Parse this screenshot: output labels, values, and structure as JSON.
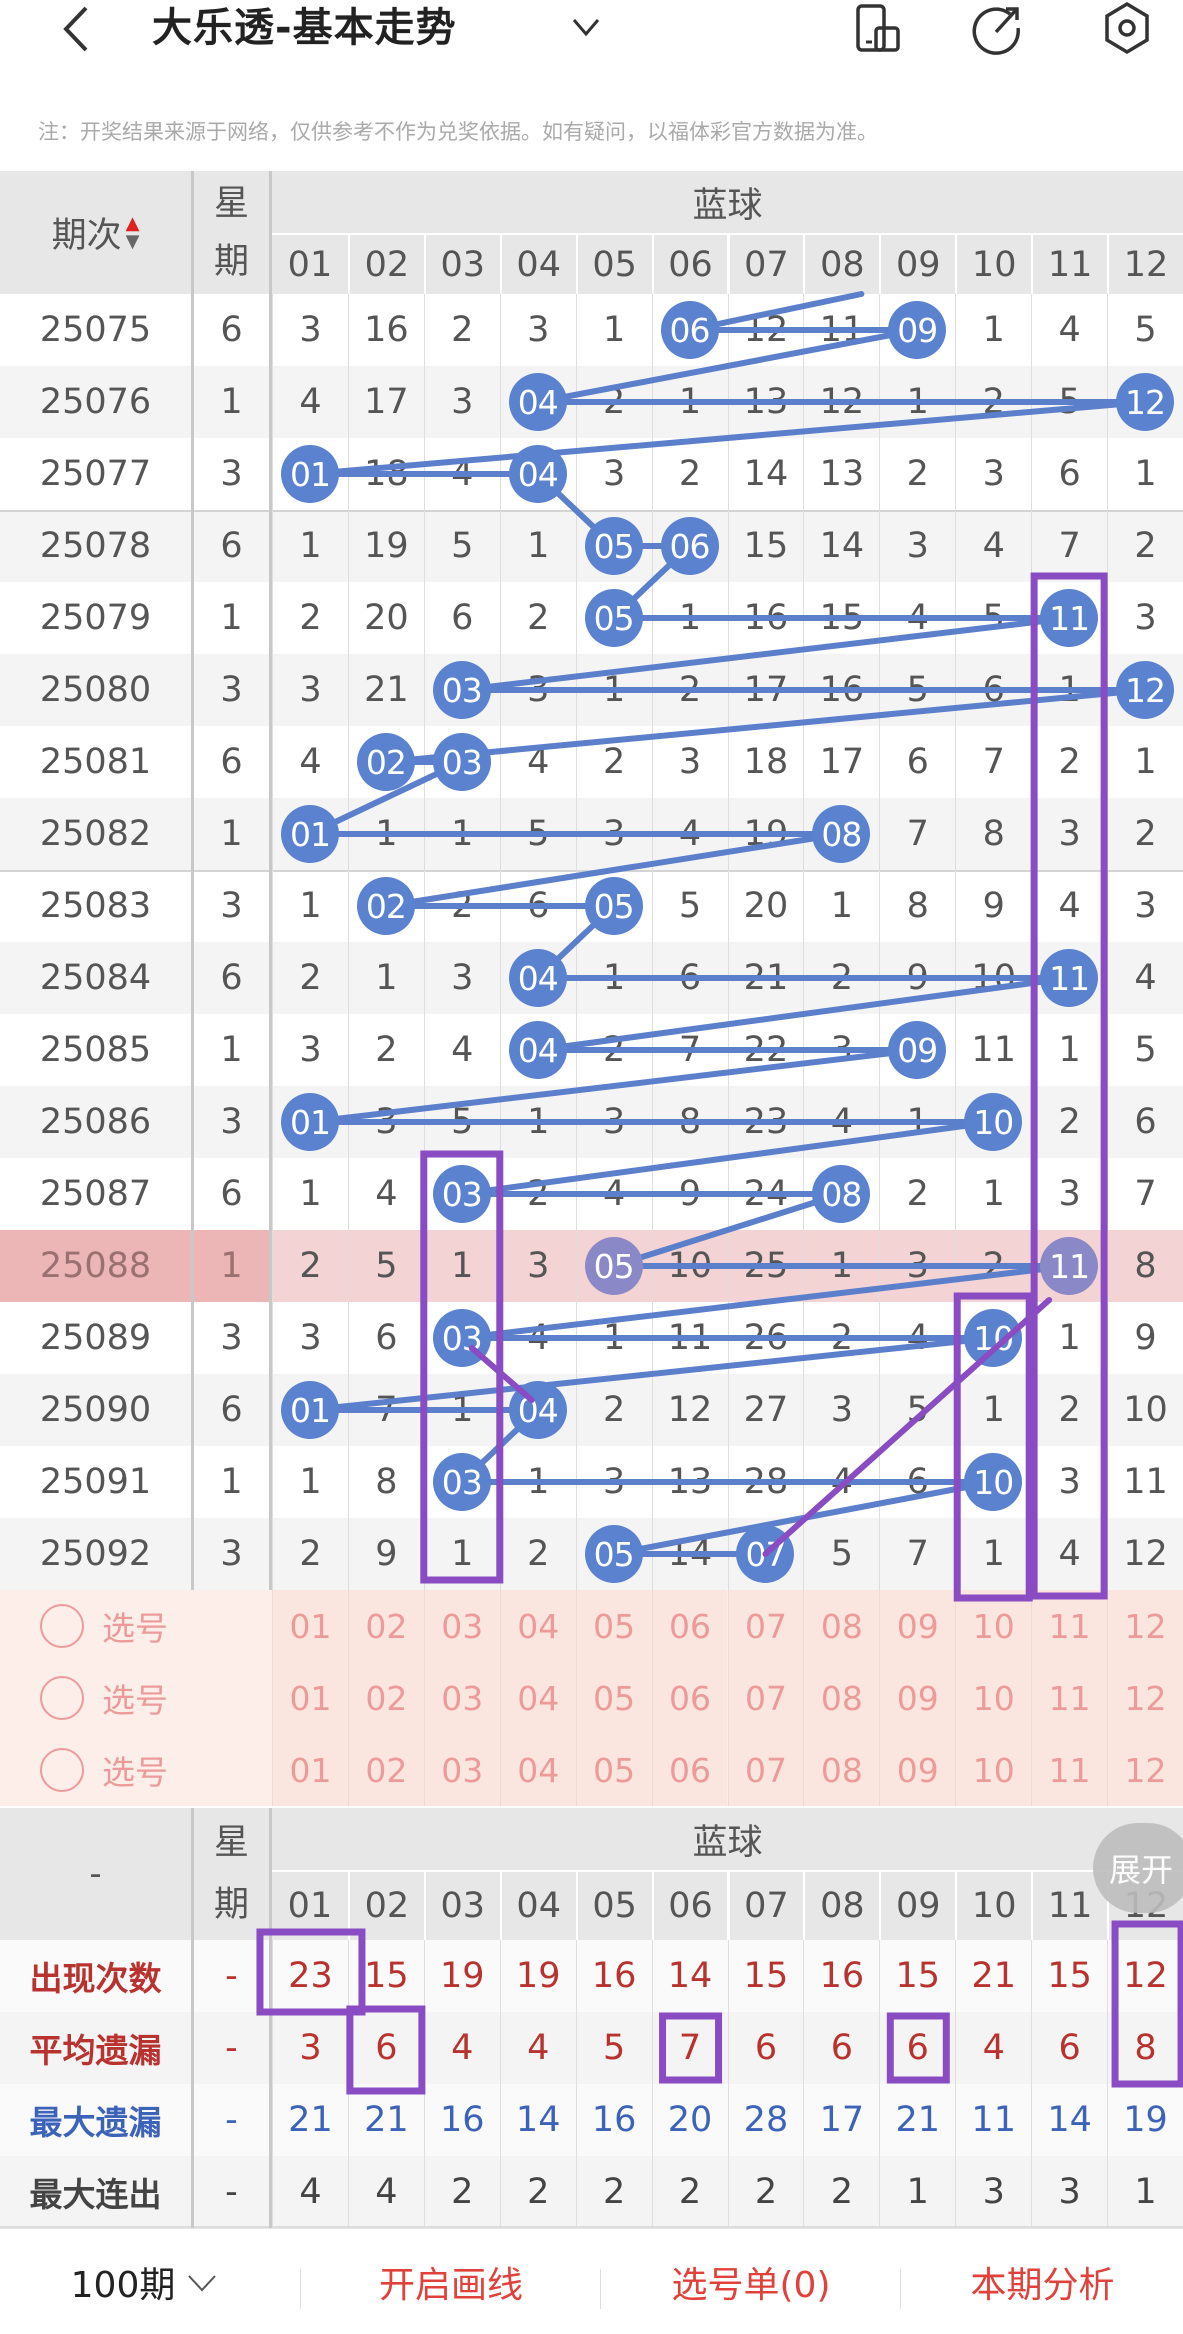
{
  "header": {
    "back_icon": "chevron-left-icon",
    "title": "大乐透-基本走势",
    "dropdown_icon": "chevron-down-icon",
    "icons": [
      "phone-rotate-icon",
      "share-icon",
      "settings-icon"
    ]
  },
  "note": "注：开奖结果来源于网络，仅供参考不作为兑奖依据。如有疑问，以福体彩官方数据为准。",
  "table": {
    "period_header": "期次",
    "week_header": "星期",
    "group_header": "蓝球",
    "columns": [
      "01",
      "02",
      "03",
      "04",
      "05",
      "06",
      "07",
      "08",
      "09",
      "10",
      "11",
      "12"
    ],
    "highlight_period": "25088",
    "rows": [
      {
        "period": "25075",
        "week": "6",
        "values": [
          "3",
          "16",
          "2",
          "3",
          "1",
          "06",
          "12",
          "11",
          "09",
          "1",
          "4",
          "5"
        ],
        "hits": [
          6,
          9
        ]
      },
      {
        "period": "25076",
        "week": "1",
        "values": [
          "4",
          "17",
          "3",
          "04",
          "2",
          "1",
          "13",
          "12",
          "1",
          "2",
          "5",
          "12"
        ],
        "hits": [
          4,
          12
        ]
      },
      {
        "period": "25077",
        "week": "3",
        "values": [
          "01",
          "18",
          "4",
          "04",
          "3",
          "2",
          "14",
          "13",
          "2",
          "3",
          "6",
          "1"
        ],
        "hits": [
          1,
          4
        ]
      },
      {
        "period": "25078",
        "week": "6",
        "values": [
          "1",
          "19",
          "5",
          "1",
          "05",
          "06",
          "15",
          "14",
          "3",
          "4",
          "7",
          "2"
        ],
        "hits": [
          5,
          6
        ]
      },
      {
        "period": "25079",
        "week": "1",
        "values": [
          "2",
          "20",
          "6",
          "2",
          "05",
          "1",
          "16",
          "15",
          "4",
          "5",
          "11",
          "3"
        ],
        "hits": [
          5,
          11
        ]
      },
      {
        "period": "25080",
        "week": "3",
        "values": [
          "3",
          "21",
          "03",
          "3",
          "1",
          "2",
          "17",
          "16",
          "5",
          "6",
          "1",
          "12"
        ],
        "hits": [
          3,
          12
        ]
      },
      {
        "period": "25081",
        "week": "6",
        "values": [
          "4",
          "02",
          "03",
          "4",
          "2",
          "3",
          "18",
          "17",
          "6",
          "7",
          "2",
          "1"
        ],
        "hits": [
          2,
          3
        ]
      },
      {
        "period": "25082",
        "week": "1",
        "values": [
          "01",
          "1",
          "1",
          "5",
          "3",
          "4",
          "19",
          "08",
          "7",
          "8",
          "3",
          "2"
        ],
        "hits": [
          1,
          8
        ]
      },
      {
        "period": "25083",
        "week": "3",
        "values": [
          "1",
          "02",
          "2",
          "6",
          "05",
          "5",
          "20",
          "1",
          "8",
          "9",
          "4",
          "3"
        ],
        "hits": [
          2,
          5
        ]
      },
      {
        "period": "25084",
        "week": "6",
        "values": [
          "2",
          "1",
          "3",
          "04",
          "1",
          "6",
          "21",
          "2",
          "9",
          "10",
          "11",
          "4"
        ],
        "hits": [
          4,
          11
        ]
      },
      {
        "period": "25085",
        "week": "1",
        "values": [
          "3",
          "2",
          "4",
          "04",
          "2",
          "7",
          "22",
          "3",
          "09",
          "11",
          "1",
          "5"
        ],
        "hits": [
          4,
          9
        ]
      },
      {
        "period": "25086",
        "week": "3",
        "values": [
          "01",
          "3",
          "5",
          "1",
          "3",
          "8",
          "23",
          "4",
          "1",
          "10",
          "2",
          "6"
        ],
        "hits": [
          1,
          10
        ]
      },
      {
        "period": "25087",
        "week": "6",
        "values": [
          "1",
          "4",
          "03",
          "2",
          "4",
          "9",
          "24",
          "08",
          "2",
          "1",
          "3",
          "7"
        ],
        "hits": [
          3,
          8
        ]
      },
      {
        "period": "25088",
        "week": "1",
        "values": [
          "2",
          "5",
          "1",
          "3",
          "05",
          "10",
          "25",
          "1",
          "3",
          "2",
          "11",
          "8"
        ],
        "hits": [
          5,
          11
        ]
      },
      {
        "period": "25089",
        "week": "3",
        "values": [
          "3",
          "6",
          "03",
          "4",
          "1",
          "11",
          "26",
          "2",
          "4",
          "10",
          "1",
          "9"
        ],
        "hits": [
          3,
          10
        ]
      },
      {
        "period": "25090",
        "week": "6",
        "values": [
          "01",
          "7",
          "1",
          "04",
          "2",
          "12",
          "27",
          "3",
          "5",
          "1",
          "2",
          "10"
        ],
        "hits": [
          1,
          4
        ]
      },
      {
        "period": "25091",
        "week": "1",
        "values": [
          "1",
          "8",
          "03",
          "1",
          "3",
          "13",
          "28",
          "4",
          "6",
          "10",
          "3",
          "11"
        ],
        "hits": [
          3,
          10
        ]
      },
      {
        "period": "25092",
        "week": "3",
        "values": [
          "2",
          "9",
          "1",
          "2",
          "05",
          "14",
          "07",
          "5",
          "7",
          "1",
          "4",
          "12"
        ],
        "hits": [
          5,
          7
        ]
      }
    ],
    "select_rows": [
      {
        "label": "选号",
        "checked": false
      },
      {
        "label": "选号",
        "checked": false
      },
      {
        "label": "选号",
        "checked": false
      }
    ]
  },
  "stats": {
    "corner": "-",
    "week_header": "星期",
    "group_header": "蓝球",
    "expand_label": "展开",
    "rows": [
      {
        "label": "出现次数",
        "week": "-",
        "color": "#b8322f",
        "values": [
          "23",
          "15",
          "19",
          "19",
          "16",
          "14",
          "15",
          "16",
          "15",
          "21",
          "15",
          "12"
        ]
      },
      {
        "label": "平均遗漏",
        "week": "-",
        "color": "#b8322f",
        "values": [
          "3",
          "6",
          "4",
          "4",
          "5",
          "7",
          "6",
          "6",
          "6",
          "4",
          "6",
          "8"
        ]
      },
      {
        "label": "最大遗漏",
        "week": "-",
        "color": "#3d63b8",
        "values": [
          "21",
          "21",
          "16",
          "14",
          "16",
          "20",
          "28",
          "17",
          "21",
          "11",
          "14",
          "19"
        ]
      },
      {
        "label": "最大连出",
        "week": "-",
        "color": "#444444",
        "values": [
          "4",
          "4",
          "2",
          "2",
          "2",
          "2",
          "2",
          "2",
          "1",
          "3",
          "3",
          "1"
        ]
      }
    ]
  },
  "bottom": {
    "period_select": "100期",
    "draw_lines": "开启画线",
    "pick_list": "选号单(0)",
    "analysis": "本期分析"
  },
  "colors": {
    "ball": "#5b82cf",
    "line": "#5b7fcb",
    "annotation": "#8a4cc2",
    "accent_red": "#e0413a",
    "select_pink": "#ec9a9a"
  }
}
